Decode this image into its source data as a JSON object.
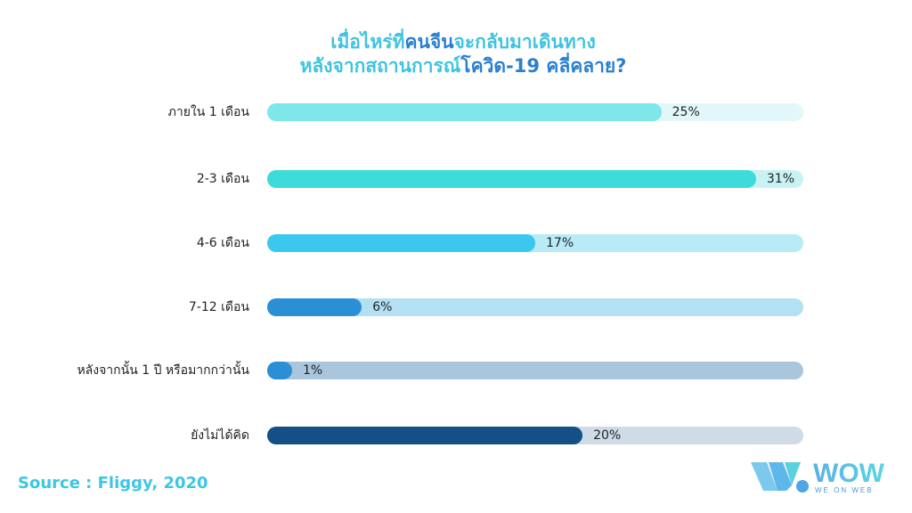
{
  "chart_data": {
    "type": "bar",
    "orientation": "horizontal",
    "title": [
      [
        {
          "t": "เมื่อไหร่ที่",
          "c": "l"
        },
        {
          "t": "คนจีน",
          "c": "d"
        },
        {
          "t": "จะกลับมาเดินทาง",
          "c": "l"
        }
      ],
      [
        {
          "t": "หลังจากสถานการณ์",
          "c": "l"
        },
        {
          "t": "โควิด-19 คลี่คลาย?",
          "c": "d"
        }
      ]
    ],
    "categories": [
      "ภายใน 1 เดือน",
      "2-3 เดือน",
      "4-6 เดือน",
      "7-12 เดือน",
      "หลังจากนั้น 1 ปี หรือมากกว่านั้น",
      "ยังไม่ได้คิด"
    ],
    "values": [
      25,
      31,
      17,
      6,
      1,
      20
    ],
    "labels": [
      "25%",
      "31%",
      "17%",
      "6%",
      "1%",
      "20%"
    ],
    "colors": [
      "#7fe6ea",
      "#3ddbd9",
      "#3ac8ee",
      "#2b8fd6",
      "#2b8fd6",
      "#144f87"
    ],
    "track_colors": [
      "#e1f7f9",
      "#c9f3f3",
      "#b8ebf6",
      "#b4e0f3",
      "#a9c6dd",
      "#cfdbe7"
    ],
    "xlim": [
      0,
      34
    ]
  },
  "source": "Source : Fliggy, 2020",
  "logo": {
    "name": "WOW",
    "tagline": "WE ON WEB"
  }
}
